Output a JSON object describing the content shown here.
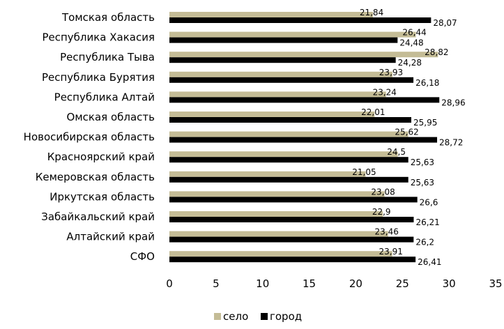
{
  "chart_data": {
    "type": "bar",
    "orientation": "horizontal",
    "categories": [
      "Томская область",
      "Республика Хакасия",
      "Республика Тыва",
      "Республика Бурятия",
      "Республика Алтай",
      "Омская область",
      "Новосибирская область",
      "Красноярский край",
      "Кемеровская область",
      "Иркутская область",
      "Забайкальский край",
      "Алтайский край",
      "СФО"
    ],
    "series": [
      {
        "name": "село",
        "color": "#c4bc96",
        "values": [
          21.84,
          26.44,
          28.82,
          23.93,
          23.24,
          22.01,
          25.62,
          24.5,
          21.05,
          23.08,
          22.9,
          23.46,
          23.91
        ],
        "labels": [
          "21,84",
          "26,44",
          "28,82",
          "23,93",
          "23,24",
          "22,01",
          "25,62",
          "24,5",
          "21,05",
          "23,08",
          "22,9",
          "23,46",
          "23,91"
        ]
      },
      {
        "name": "город",
        "color": "#000000",
        "values": [
          28.07,
          24.48,
          24.28,
          26.18,
          28.96,
          25.95,
          28.72,
          25.63,
          25.63,
          26.6,
          26.21,
          26.2,
          26.41
        ],
        "labels": [
          "28,07",
          "24,48",
          "24,28",
          "26,18",
          "28,96",
          "25,95",
          "28,72",
          "25,63",
          "25,63",
          "26,6",
          "26,21",
          "26,2",
          "26,41"
        ]
      }
    ],
    "xlim": [
      0,
      35
    ],
    "xticks": [
      "0",
      "5",
      "10",
      "15",
      "20",
      "25",
      "30",
      "35"
    ],
    "grid": false,
    "legend_position": "bottom"
  }
}
